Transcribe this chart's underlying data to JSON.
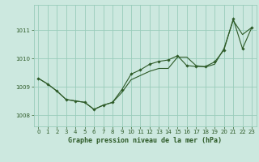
{
  "xlabel": "Graphe pression niveau de la mer (hPa)",
  "background_color": "#cce8df",
  "grid_color": "#99ccbb",
  "line_color": "#2d5a27",
  "marker_color": "#2d5a27",
  "xlim": [
    -0.5,
    23.5
  ],
  "ylim": [
    1007.6,
    1011.9
  ],
  "yticks": [
    1008,
    1009,
    1010,
    1011
  ],
  "xticks": [
    0,
    1,
    2,
    3,
    4,
    5,
    6,
    7,
    8,
    9,
    10,
    11,
    12,
    13,
    14,
    15,
    16,
    17,
    18,
    19,
    20,
    21,
    22,
    23
  ],
  "series1_x": [
    0,
    1,
    2,
    3,
    4,
    5,
    6,
    7,
    8,
    9,
    10,
    11,
    12,
    13,
    14,
    15,
    16,
    17,
    18,
    19,
    20,
    21,
    22,
    23
  ],
  "series1_y": [
    1009.3,
    1009.1,
    1008.85,
    1008.55,
    1008.5,
    1008.45,
    1008.2,
    1008.35,
    1008.45,
    1008.8,
    1009.25,
    1009.4,
    1009.55,
    1009.65,
    1009.65,
    1010.05,
    1010.05,
    1009.75,
    1009.7,
    1009.8,
    1010.35,
    1011.35,
    1010.85,
    1011.1
  ],
  "series2_x": [
    0,
    1,
    2,
    3,
    4,
    5,
    6,
    7,
    8,
    9,
    10,
    11,
    12,
    13,
    14,
    15,
    16,
    17,
    18,
    19,
    20,
    21,
    22,
    23
  ],
  "series2_y": [
    1009.3,
    1009.1,
    1008.85,
    1008.55,
    1008.5,
    1008.45,
    1008.2,
    1008.35,
    1008.45,
    1008.9,
    1009.45,
    1009.6,
    1009.8,
    1009.9,
    1009.95,
    1010.1,
    1009.75,
    1009.72,
    1009.72,
    1009.88,
    1010.3,
    1011.4,
    1010.35,
    1011.1
  ]
}
